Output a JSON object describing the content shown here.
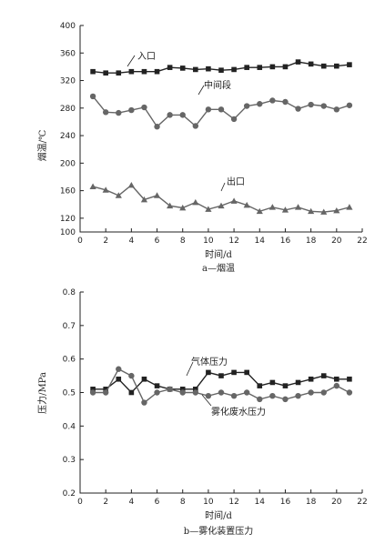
{
  "chart_data": [
    {
      "type": "line",
      "caption": "a—烟温",
      "xlabel": "时间/d",
      "ylabel": "烟温/℃",
      "xlim": [
        0,
        22
      ],
      "ylim": [
        100,
        400
      ],
      "xticks": [
        "0",
        "2",
        "4",
        "6",
        "8",
        "10",
        "12",
        "14",
        "16",
        "18",
        "20",
        "22"
      ],
      "yticks": [
        "100",
        "120",
        "160",
        "200",
        "240",
        "280",
        "320",
        "360",
        "400"
      ],
      "x": [
        1,
        2,
        3,
        4,
        5,
        6,
        7,
        8,
        9,
        10,
        11,
        12,
        13,
        14,
        15,
        16,
        17,
        18,
        19,
        20,
        21
      ],
      "series": [
        {
          "name": "入口",
          "marker": "square",
          "color": "#222222",
          "values": [
            333,
            331,
            331,
            333,
            333,
            333,
            339,
            338,
            336,
            337,
            335,
            336,
            339,
            339,
            340,
            340,
            347,
            344,
            341,
            341,
            343
          ]
        },
        {
          "name": "中间段",
          "marker": "circle",
          "color": "#666666",
          "values": [
            297,
            274,
            273,
            277,
            281,
            253,
            270,
            270,
            254,
            278,
            278,
            264,
            283,
            286,
            291,
            289,
            279,
            285,
            283,
            278,
            284
          ]
        },
        {
          "name": "出口",
          "marker": "triangle",
          "color": "#666666",
          "values": [
            166,
            161,
            153,
            168,
            147,
            153,
            138,
            135,
            143,
            133,
            138,
            145,
            139,
            130,
            136,
            132,
            136,
            130,
            129,
            131,
            136
          ]
        }
      ],
      "annotations": [
        {
          "text": "入口",
          "series": 0
        },
        {
          "text": "中间段",
          "series": 1
        },
        {
          "text": "出口",
          "series": 2
        }
      ]
    },
    {
      "type": "line",
      "caption": "b—雾化装置压力",
      "xlabel": "时间/d",
      "ylabel": "压力/MPa",
      "xlim": [
        0,
        22
      ],
      "ylim": [
        0.2,
        0.8
      ],
      "xticks": [
        "0",
        "2",
        "4",
        "6",
        "8",
        "10",
        "12",
        "14",
        "16",
        "18",
        "20",
        "22"
      ],
      "yticks": [
        "0.2",
        "0.3",
        "0.4",
        "0.5",
        "0.6",
        "0.7",
        "0.8"
      ],
      "x": [
        1,
        2,
        3,
        4,
        5,
        6,
        7,
        8,
        9,
        10,
        11,
        12,
        13,
        14,
        15,
        16,
        17,
        18,
        19,
        20,
        21
      ],
      "series": [
        {
          "name": "气体压力",
          "marker": "square",
          "color": "#222222",
          "values": [
            0.51,
            0.51,
            0.54,
            0.5,
            0.54,
            0.52,
            0.51,
            0.51,
            0.51,
            0.56,
            0.55,
            0.56,
            0.56,
            0.52,
            0.53,
            0.52,
            0.53,
            0.54,
            0.55,
            0.54,
            0.54
          ]
        },
        {
          "name": "雾化废水压力",
          "marker": "circle",
          "color": "#666666",
          "values": [
            0.5,
            0.5,
            0.57,
            0.55,
            0.47,
            0.5,
            0.51,
            0.5,
            0.5,
            0.49,
            0.5,
            0.49,
            0.5,
            0.48,
            0.49,
            0.48,
            0.49,
            0.5,
            0.5,
            0.52,
            0.5
          ]
        }
      ],
      "annotations": [
        {
          "text": "气体压力",
          "series": 0
        },
        {
          "text": "雾化废水压力",
          "series": 1
        }
      ]
    }
  ]
}
